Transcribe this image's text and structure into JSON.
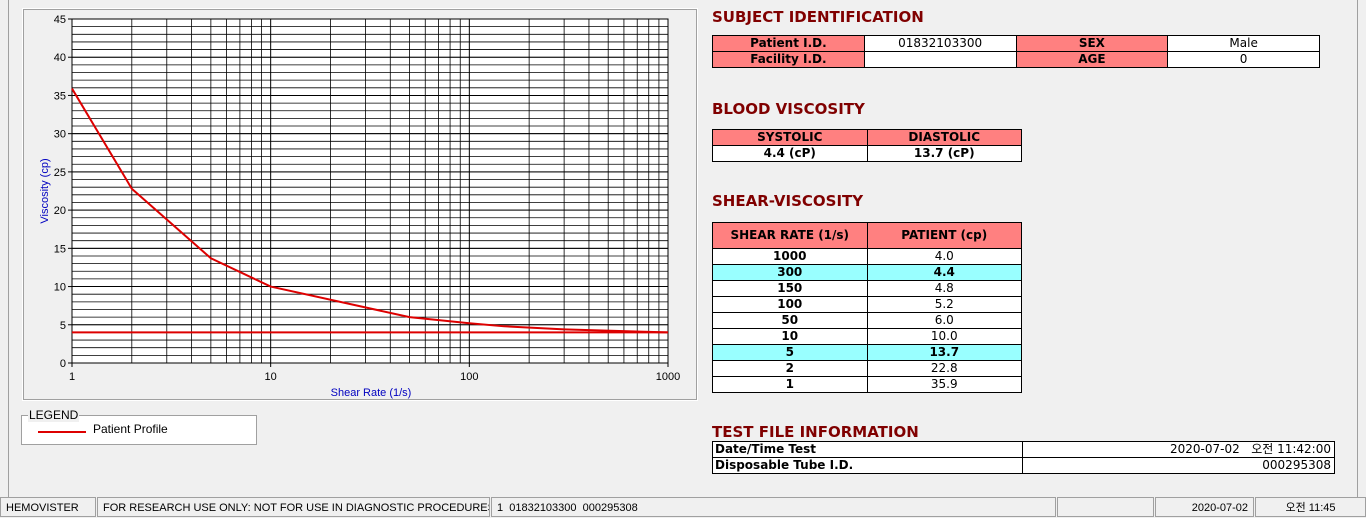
{
  "chart_data": {
    "type": "line",
    "x_label": "Shear Rate (1/s)",
    "y_label": "Viscosity (cp)",
    "x": [
      1,
      2,
      5,
      10,
      50,
      100,
      150,
      300,
      1000
    ],
    "series": [
      {
        "name": "Patient Profile",
        "color": "#dd0000",
        "values": [
          35.9,
          22.8,
          13.7,
          10.0,
          6.0,
          5.2,
          4.8,
          4.4,
          4.0
        ]
      },
      {
        "color": "#dd0000",
        "values": [
          4,
          4,
          4,
          4,
          4,
          4,
          4,
          4,
          4
        ]
      }
    ],
    "xlim": [
      1,
      1000
    ],
    "ylim": [
      0,
      45
    ],
    "xticks": [
      1,
      10,
      100,
      1000
    ],
    "yticks": [
      0,
      5,
      10,
      15,
      20,
      25,
      30,
      35,
      40,
      45
    ],
    "log_x": true,
    "grid": true,
    "legend_title": "LEGEND"
  },
  "subject_identification": {
    "title": "SUBJECT IDENTIFICATION",
    "fields": [
      {
        "label": "Patient I.D.",
        "value": "01832103300"
      },
      {
        "label": "SEX",
        "value": "Male"
      },
      {
        "label": "Facility I.D."
      },
      {
        "label": "AGE",
        "value": 0
      }
    ]
  },
  "blood_viscosity": {
    "title": "BLOOD VISCOSITY",
    "headers": [
      "SYSTOLIC",
      "DIASTOLIC"
    ],
    "values": [
      "4.4 (cP)",
      "13.7 (cP)"
    ]
  },
  "shear_viscosity": {
    "title": "SHEAR-VISCOSITY",
    "headers": [
      "SHEAR RATE (1/s)",
      "PATIENT (cp)"
    ],
    "rows": [
      [
        1000,
        "4.0"
      ],
      [
        300,
        "4.4"
      ],
      [
        150,
        "4.8"
      ],
      [
        100,
        "5.2"
      ],
      [
        50,
        "6.0"
      ],
      [
        10,
        "10.0"
      ],
      [
        5,
        "13.7"
      ],
      [
        2,
        "22.8"
      ],
      [
        1,
        "35.9"
      ]
    ]
  },
  "test_file": {
    "title": "TEST FILE INFORMATION",
    "rows": [
      [
        "Date/Time Test",
        "2020-07-02   오전 11:42:00"
      ],
      [
        "Disposable Tube I.D.",
        "000295308"
      ]
    ]
  },
  "status_bar": [
    "HEMOVISTER",
    "FOR RESEARCH USE ONLY: NOT FOR USE IN DIAGNOSTIC PROCEDURES",
    "1  01832103300  000295308",
    "2020-07-02",
    "오전 11:45"
  ]
}
